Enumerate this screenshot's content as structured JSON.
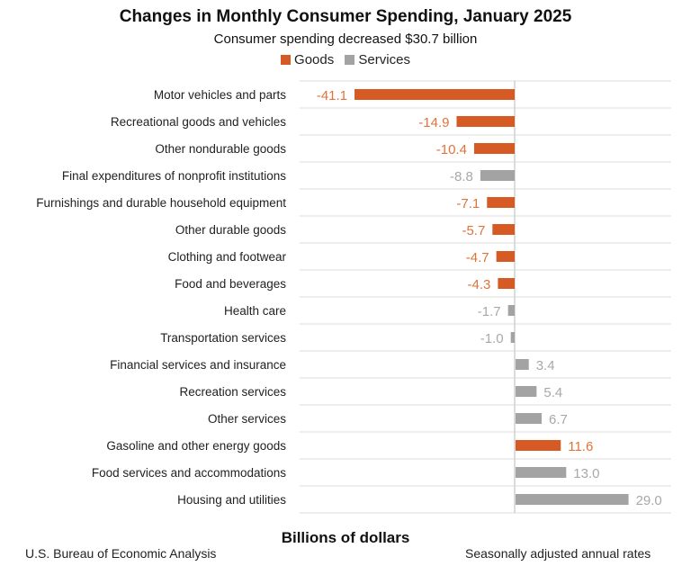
{
  "chart_data": {
    "type": "bar",
    "orientation": "horizontal",
    "title": "Changes in Monthly Consumer Spending, January 2025",
    "subtitle": "Consumer spending decreased $30.7 billion",
    "xlabel": "Billions of dollars",
    "legend": {
      "placement": "top",
      "entries": [
        {
          "name": "Goods",
          "color": "#d65a24"
        },
        {
          "name": "Services",
          "color": "#a3a3a3"
        }
      ]
    },
    "xlim": [
      -41.1,
      40
    ],
    "grid": "horizontal row separators",
    "categories": [
      "Motor vehicles and parts",
      "Recreational goods and vehicles",
      "Other nondurable goods",
      "Final expenditures of nonprofit institutions",
      "Furnishings and durable household equipment",
      "Other durable goods",
      "Clothing and footwear",
      "Food and beverages",
      "Health care",
      "Transportation services",
      "Financial services and insurance",
      "Recreation services",
      "Other services",
      "Gasoline and other energy goods",
      "Food services and accommodations",
      "Housing and utilities"
    ],
    "values": [
      -41.1,
      -14.9,
      -10.4,
      -8.8,
      -7.1,
      -5.7,
      -4.7,
      -4.3,
      -1.7,
      -1.0,
      3.4,
      5.4,
      6.7,
      11.6,
      13.0,
      29.0
    ],
    "labels": [
      "-41.1",
      "-14.9",
      "-10.4",
      "-8.8",
      "-7.1",
      "-5.7",
      "-4.7",
      "-4.3",
      "-1.7",
      "-1.0",
      "3.4",
      "5.4",
      "6.7",
      "11.6",
      "13.0",
      "29.0"
    ],
    "group": [
      "Goods",
      "Goods",
      "Goods",
      "Services",
      "Goods",
      "Goods",
      "Goods",
      "Goods",
      "Services",
      "Services",
      "Services",
      "Services",
      "Services",
      "Goods",
      "Services",
      "Services"
    ]
  },
  "colors": {
    "goods_bar": "#d65a24",
    "services_bar": "#a3a3a3",
    "goods_label": "#e0733a",
    "services_label": "#a8a8a8"
  },
  "footer": {
    "source": "U.S. Bureau of Economic Analysis",
    "note": "Seasonally adjusted annual rates"
  }
}
